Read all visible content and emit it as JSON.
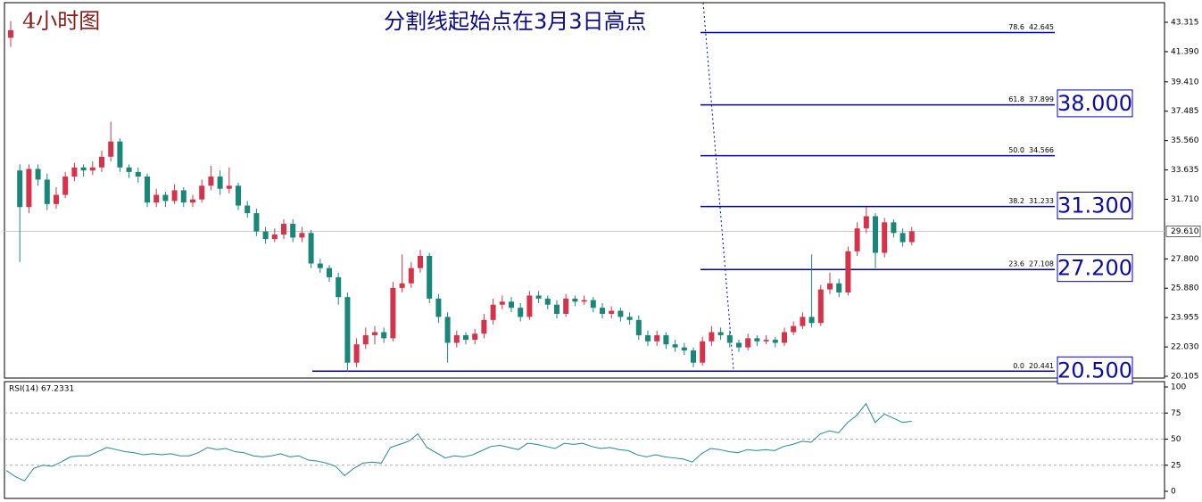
{
  "chart_data": {
    "type": "candlestick",
    "title": "4小时图",
    "subtitle": "分割线起始点在3月3日高点",
    "up_color": "#d6334a",
    "down_color": "#19867a",
    "ylim": [
      19.99,
      44.6
    ],
    "yticks": [
      20.105,
      {
        "value": 22.03,
        "label": "22.030"
      },
      23.955,
      {
        "value": 25.88,
        "label": "25.880"
      },
      {
        "value": 27.8,
        "label": "27.800"
      },
      {
        "value": 31.71,
        "label": "31.710"
      },
      33.635,
      {
        "value": 35.56,
        "label": "35.560"
      },
      37.485,
      {
        "value": 39.41,
        "label": "39.410"
      },
      {
        "value": 41.39,
        "label": "41.390"
      },
      43.315
    ],
    "current_price": {
      "value": 29.61,
      "label": "29.610"
    },
    "candles": [
      [
        42.3,
        43.4,
        41.7,
        42.8
      ],
      [
        33.6,
        34.0,
        27.6,
        31.2
      ],
      [
        31.2,
        34.0,
        30.8,
        33.7
      ],
      [
        33.7,
        34.0,
        32.6,
        33.0
      ],
      [
        33.0,
        33.4,
        31.0,
        31.4
      ],
      [
        31.4,
        32.5,
        31.1,
        32.0
      ],
      [
        32.0,
        33.5,
        31.8,
        33.2
      ],
      [
        33.2,
        34.1,
        32.9,
        33.8
      ],
      [
        33.8,
        34.0,
        33.2,
        33.6
      ],
      [
        33.6,
        34.2,
        33.3,
        33.8
      ],
      [
        33.8,
        34.9,
        33.5,
        34.5
      ],
      [
        34.5,
        36.8,
        34.2,
        35.5
      ],
      [
        35.5,
        35.7,
        33.5,
        33.8
      ],
      [
        33.8,
        34.0,
        33.1,
        33.5
      ],
      [
        33.5,
        33.8,
        32.8,
        33.2
      ],
      [
        33.2,
        33.4,
        31.2,
        31.5
      ],
      [
        31.5,
        32.4,
        31.2,
        32.0
      ],
      [
        32.0,
        32.2,
        31.2,
        31.6
      ],
      [
        31.6,
        32.7,
        31.4,
        32.3
      ],
      [
        32.3,
        32.5,
        31.2,
        31.5
      ],
      [
        31.5,
        32.0,
        31.2,
        31.7
      ],
      [
        31.7,
        33.0,
        31.5,
        32.6
      ],
      [
        32.6,
        33.9,
        32.3,
        33.2
      ],
      [
        33.2,
        33.6,
        32.0,
        32.4
      ],
      [
        32.4,
        33.8,
        32.1,
        32.6
      ],
      [
        32.6,
        32.8,
        31.0,
        31.3
      ],
      [
        31.3,
        31.6,
        30.5,
        30.8
      ],
      [
        30.8,
        31.1,
        29.3,
        29.6
      ],
      [
        29.6,
        29.9,
        28.8,
        29.1
      ],
      [
        29.1,
        29.8,
        28.9,
        29.4
      ],
      [
        29.4,
        30.4,
        29.1,
        30.1
      ],
      [
        30.1,
        30.4,
        28.9,
        29.2
      ],
      [
        29.2,
        29.9,
        28.9,
        29.5
      ],
      [
        29.5,
        29.7,
        27.2,
        27.5
      ],
      [
        27.5,
        27.8,
        26.9,
        27.2
      ],
      [
        27.2,
        27.4,
        26.3,
        26.6
      ],
      [
        26.6,
        26.9,
        24.8,
        25.3
      ],
      [
        25.3,
        25.6,
        20.4,
        21.0
      ],
      [
        21.0,
        22.6,
        20.7,
        22.2
      ],
      [
        22.2,
        23.3,
        21.9,
        22.8
      ],
      [
        22.8,
        23.4,
        22.2,
        23.0
      ],
      [
        23.0,
        23.3,
        22.3,
        22.6
      ],
      [
        22.6,
        26.3,
        22.4,
        25.9
      ],
      [
        25.9,
        28.1,
        25.6,
        26.2
      ],
      [
        26.2,
        27.6,
        25.9,
        27.2
      ],
      [
        27.2,
        28.4,
        26.9,
        28.0
      ],
      [
        28.0,
        28.2,
        24.9,
        25.2
      ],
      [
        25.2,
        25.5,
        23.6,
        24.0
      ],
      [
        24.0,
        24.3,
        21.0,
        22.3
      ],
      [
        22.3,
        23.1,
        22.0,
        22.8
      ],
      [
        22.8,
        23.0,
        22.2,
        22.5
      ],
      [
        22.5,
        23.2,
        22.2,
        22.9
      ],
      [
        22.9,
        24.2,
        22.6,
        23.8
      ],
      [
        23.8,
        25.2,
        23.5,
        24.8
      ],
      [
        24.8,
        25.4,
        24.5,
        25.0
      ],
      [
        25.0,
        25.3,
        24.3,
        24.6
      ],
      [
        24.6,
        24.9,
        23.7,
        24.0
      ],
      [
        24.0,
        25.7,
        23.8,
        25.4
      ],
      [
        25.4,
        25.7,
        24.9,
        25.2
      ],
      [
        25.2,
        25.4,
        24.5,
        24.8
      ],
      [
        24.8,
        25.1,
        23.9,
        24.2
      ],
      [
        24.2,
        25.5,
        24.0,
        25.2
      ],
      [
        25.2,
        25.4,
        24.7,
        25.0
      ],
      [
        25.0,
        25.4,
        24.8,
        25.1
      ],
      [
        25.1,
        25.3,
        24.3,
        24.6
      ],
      [
        24.6,
        24.9,
        23.9,
        24.2
      ],
      [
        24.2,
        24.7,
        23.9,
        24.4
      ],
      [
        24.4,
        24.6,
        23.7,
        24.0
      ],
      [
        24.0,
        24.3,
        23.5,
        23.8
      ],
      [
        23.8,
        24.1,
        22.5,
        22.8
      ],
      [
        22.8,
        23.1,
        22.1,
        22.4
      ],
      [
        22.4,
        23.1,
        22.1,
        22.8
      ],
      [
        22.8,
        23.0,
        21.9,
        22.2
      ],
      [
        22.2,
        22.5,
        21.7,
        22.0
      ],
      [
        22.0,
        22.3,
        21.5,
        21.8
      ],
      [
        21.8,
        22.0,
        20.7,
        21.0
      ],
      [
        21.0,
        22.7,
        20.8,
        22.4
      ],
      [
        22.4,
        23.4,
        22.1,
        23.0
      ],
      [
        23.0,
        23.3,
        22.5,
        22.8
      ],
      [
        22.8,
        23.1,
        22.0,
        22.3
      ],
      [
        22.3,
        22.5,
        21.7,
        22.0
      ],
      [
        22.0,
        22.9,
        21.8,
        22.6
      ],
      [
        22.6,
        22.8,
        22.1,
        22.4
      ],
      [
        22.4,
        22.8,
        22.2,
        22.5
      ],
      [
        22.5,
        22.7,
        22.0,
        22.3
      ],
      [
        22.3,
        23.3,
        22.1,
        23.0
      ],
      [
        23.0,
        23.7,
        22.8,
        23.4
      ],
      [
        23.4,
        24.3,
        23.2,
        24.0
      ],
      [
        24.0,
        28.1,
        23.3,
        23.6
      ],
      [
        23.6,
        26.1,
        23.4,
        25.8
      ],
      [
        25.8,
        26.9,
        25.5,
        26.2
      ],
      [
        26.2,
        26.5,
        25.3,
        25.6
      ],
      [
        25.6,
        28.6,
        25.4,
        28.3
      ],
      [
        28.3,
        30.2,
        28.0,
        29.8
      ],
      [
        29.8,
        31.2,
        29.5,
        30.6
      ],
      [
        30.6,
        30.8,
        27.2,
        28.2
      ],
      [
        28.2,
        30.5,
        27.9,
        30.2
      ],
      [
        30.2,
        30.4,
        29.2,
        29.5
      ],
      [
        29.5,
        29.8,
        28.6,
        28.9
      ],
      [
        28.9,
        29.9,
        28.7,
        29.61
      ]
    ],
    "fib_color": "#0000c8",
    "fib_levels": [
      {
        "level": 78.6,
        "price": 42.645
      },
      {
        "level": 61.8,
        "price": 37.899
      },
      {
        "level": {
          "value": 50,
          "label": "50.0"
        },
        "price": 34.566
      },
      {
        "level": 38.2,
        "price": 31.233
      },
      {
        "level": 23.6,
        "price": 27.108
      },
      {
        "level": {
          "value": 0,
          "label": "0.0"
        },
        "price": 20.441
      }
    ],
    "targets": [
      {
        "value": 38,
        "label": "38.000"
      },
      {
        "value": 31.3,
        "label": "31.300"
      },
      {
        "value": 27.2,
        "label": "27.200"
      },
      {
        "value": 20.5,
        "label": "20.500"
      }
    ],
    "rsi": {
      "label": "RSI(14) 67.2331",
      "color": "#1f8a9a",
      "ylim": [
        0,
        100
      ],
      "yticks": [
        0,
        25,
        50,
        75,
        100
      ],
      "levels": [
        25,
        50,
        75
      ],
      "values": [
        20,
        14,
        10,
        22,
        25,
        24,
        28,
        33,
        34,
        34,
        38,
        42,
        40,
        38,
        37,
        35,
        36,
        35,
        36,
        34,
        34,
        37,
        42,
        40,
        41,
        38,
        37,
        34,
        33,
        34,
        36,
        33,
        34,
        30,
        29,
        27,
        24,
        15,
        22,
        27,
        28,
        27,
        42,
        45,
        48,
        55,
        42,
        37,
        32,
        34,
        33,
        35,
        39,
        43,
        44,
        42,
        40,
        46,
        45,
        43,
        41,
        46,
        45,
        46,
        43,
        41,
        42,
        40,
        39,
        35,
        33,
        35,
        33,
        32,
        31,
        28,
        36,
        41,
        40,
        38,
        37,
        40,
        39,
        40,
        39,
        43,
        45,
        48,
        47,
        55,
        58,
        56,
        66,
        73,
        84,
        66,
        74,
        70,
        66,
        67.2331
      ]
    }
  }
}
